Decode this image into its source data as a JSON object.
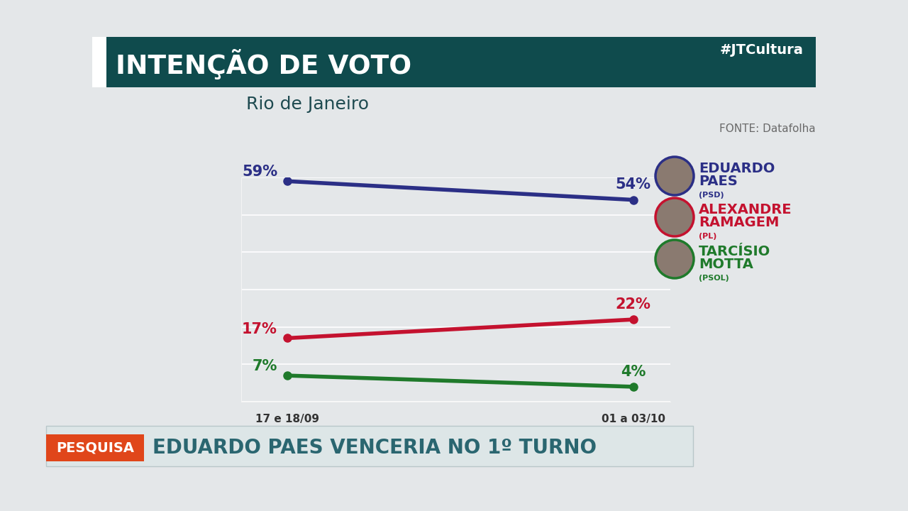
{
  "chart_data": {
    "type": "line",
    "title": "INTENÇÃO DE VOTO",
    "subtitle": "Rio de Janeiro",
    "source": "FONTE: Datafolha",
    "hashtag": "#JTCultura",
    "banner": {
      "tag": "PESQUISA",
      "headline": "EDUARDO PAES VENCERIA NO 1º TURNO"
    },
    "categories": [
      "17 e 18/09",
      "01 a 03/10"
    ],
    "ylim": [
      0,
      60
    ],
    "yticks": [
      0,
      10,
      20,
      30,
      40,
      50,
      60
    ],
    "grid": true,
    "tick_labels": "x",
    "data_labels": true,
    "marker": "o",
    "line_style": "solid",
    "series": [
      {
        "name": "EDUARDO PAES",
        "party": "(PSD)",
        "color": "#2b2f86",
        "values": [
          59,
          54
        ],
        "value_labels": [
          "59%",
          "54%"
        ]
      },
      {
        "name": "ALEXANDRE RAMAGEM",
        "party": "(PL)",
        "color": "#c4122f",
        "values": [
          17,
          22
        ],
        "value_labels": [
          "17%",
          "22%"
        ]
      },
      {
        "name": "TARCÍSIO MOTTA",
        "party": "(PSOL)",
        "color": "#1f7a2b",
        "values": [
          7,
          4
        ],
        "value_labels": [
          "7%",
          "4%"
        ]
      }
    ]
  }
}
